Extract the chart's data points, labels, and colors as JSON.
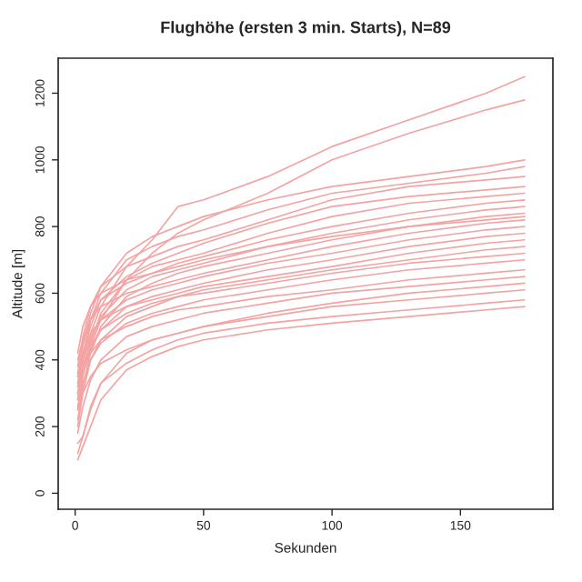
{
  "chart_data": {
    "type": "line",
    "title": "Flughöhe (ersten 3 min. Starts), N=89",
    "xlabel": "Sekunden",
    "ylabel": "Altitude [m]",
    "xlim": [
      -6.6,
      186
    ],
    "ylim": [
      -48,
      1305
    ],
    "xticks": [
      0,
      50,
      100,
      150
    ],
    "yticks": [
      0,
      200,
      400,
      600,
      800,
      1000,
      1200
    ],
    "grid": false,
    "legend": false,
    "marker": "none",
    "line_style": "solid",
    "series": [
      {
        "color": "#f4a3a3",
        "x": [
          1,
          3,
          6,
          10,
          20,
          30,
          40,
          50,
          75,
          100,
          130,
          160,
          175
        ],
        "values": [
          320,
          400,
          480,
          560,
          680,
          760,
          860,
          880,
          950,
          1040,
          1120,
          1200,
          1250
        ]
      },
      {
        "color": "#f4a3a3",
        "x": [
          1,
          3,
          6,
          10,
          20,
          30,
          40,
          50,
          75,
          100,
          130,
          160,
          175
        ],
        "values": [
          300,
          360,
          440,
          520,
          640,
          720,
          780,
          820,
          900,
          1000,
          1080,
          1150,
          1180
        ]
      },
      {
        "color": "#f4a3a3",
        "x": [
          1,
          3,
          6,
          10,
          20,
          30,
          40,
          50,
          75,
          100,
          130,
          160,
          175
        ],
        "values": [
          350,
          450,
          540,
          620,
          720,
          770,
          800,
          830,
          880,
          920,
          950,
          980,
          1000
        ]
      },
      {
        "color": "#f4a3a3",
        "x": [
          1,
          3,
          6,
          10,
          20,
          30,
          40,
          50,
          75,
          100,
          130,
          160,
          175
        ],
        "values": [
          280,
          400,
          520,
          600,
          700,
          740,
          770,
          790,
          850,
          900,
          930,
          960,
          980
        ]
      },
      {
        "color": "#f4a3a3",
        "x": [
          1,
          3,
          6,
          10,
          20,
          30,
          40,
          50,
          75,
          100,
          130,
          160,
          175
        ],
        "values": [
          380,
          470,
          560,
          620,
          680,
          710,
          740,
          760,
          820,
          880,
          920,
          940,
          950
        ]
      },
      {
        "color": "#f4a3a3",
        "x": [
          1,
          3,
          6,
          10,
          20,
          30,
          40,
          50,
          75,
          100,
          130,
          160,
          175
        ],
        "values": [
          330,
          420,
          500,
          580,
          650,
          690,
          720,
          750,
          810,
          860,
          890,
          910,
          920
        ]
      },
      {
        "color": "#f4a3a3",
        "x": [
          1,
          3,
          6,
          10,
          20,
          30,
          40,
          50,
          75,
          100,
          130,
          160,
          175
        ],
        "values": [
          250,
          350,
          450,
          540,
          640,
          680,
          700,
          720,
          780,
          830,
          870,
          890,
          900
        ]
      },
      {
        "color": "#f4a3a3",
        "x": [
          1,
          3,
          6,
          10,
          20,
          30,
          40,
          50,
          75,
          100,
          130,
          160,
          175
        ],
        "values": [
          360,
          440,
          520,
          580,
          630,
          660,
          690,
          710,
          760,
          800,
          840,
          870,
          880
        ]
      },
      {
        "color": "#f4a3a3",
        "x": [
          1,
          3,
          6,
          10,
          20,
          30,
          40,
          50,
          75,
          100,
          130,
          160,
          175
        ],
        "values": [
          300,
          380,
          460,
          530,
          610,
          650,
          670,
          690,
          740,
          780,
          820,
          850,
          860
        ]
      },
      {
        "color": "#f4a3a3",
        "x": [
          1,
          3,
          6,
          10,
          20,
          30,
          40,
          50,
          75,
          100,
          130,
          160,
          175
        ],
        "values": [
          220,
          320,
          420,
          500,
          590,
          630,
          660,
          680,
          720,
          760,
          800,
          830,
          840
        ]
      },
      {
        "color": "#f4a3a3",
        "x": [
          1,
          3,
          6,
          10,
          20,
          30,
          40,
          50,
          75,
          100,
          130,
          160,
          175
        ],
        "values": [
          400,
          460,
          520,
          560,
          600,
          620,
          640,
          660,
          700,
          740,
          780,
          810,
          820
        ]
      },
      {
        "color": "#f4a3a3",
        "x": [
          1,
          3,
          6,
          10,
          20,
          30,
          40,
          50,
          75,
          100,
          130,
          160,
          175
        ],
        "values": [
          330,
          400,
          470,
          520,
          580,
          610,
          630,
          650,
          690,
          720,
          760,
          790,
          800
        ]
      },
      {
        "color": "#f4a3a3",
        "x": [
          1,
          3,
          6,
          10,
          20,
          30,
          40,
          50,
          75,
          100,
          130,
          160,
          175
        ],
        "values": [
          280,
          360,
          430,
          490,
          560,
          590,
          610,
          630,
          670,
          700,
          740,
          770,
          780
        ]
      },
      {
        "color": "#f4a3a3",
        "x": [
          1,
          3,
          6,
          10,
          20,
          30,
          40,
          50,
          75,
          100,
          130,
          160,
          175
        ],
        "values": [
          350,
          420,
          480,
          520,
          560,
          580,
          600,
          620,
          650,
          680,
          720,
          750,
          760
        ]
      },
      {
        "color": "#f4a3a3",
        "x": [
          1,
          3,
          6,
          10,
          20,
          30,
          40,
          50,
          75,
          100,
          130,
          160,
          175
        ],
        "values": [
          200,
          300,
          400,
          460,
          530,
          560,
          590,
          610,
          640,
          670,
          700,
          730,
          740
        ]
      },
      {
        "color": "#f4a3a3",
        "x": [
          1,
          3,
          6,
          10,
          20,
          30,
          40,
          50,
          75,
          100,
          130,
          160,
          175
        ],
        "values": [
          320,
          380,
          440,
          490,
          540,
          570,
          590,
          600,
          630,
          660,
          690,
          710,
          720
        ]
      },
      {
        "color": "#f4a3a3",
        "x": [
          1,
          3,
          6,
          10,
          20,
          30,
          40,
          50,
          75,
          100,
          130,
          160,
          175
        ],
        "values": [
          260,
          330,
          400,
          450,
          510,
          540,
          560,
          580,
          610,
          640,
          670,
          690,
          700
        ]
      },
      {
        "color": "#f4a3a3",
        "x": [
          1,
          3,
          6,
          10,
          20,
          30,
          40,
          50,
          75,
          100,
          130,
          160,
          175
        ],
        "values": [
          300,
          360,
          420,
          460,
          500,
          530,
          550,
          560,
          590,
          610,
          640,
          660,
          670
        ]
      },
      {
        "color": "#f4a3a3",
        "x": [
          1,
          3,
          6,
          10,
          20,
          30,
          40,
          50,
          75,
          100,
          130,
          160,
          175
        ],
        "values": [
          180,
          260,
          340,
          400,
          470,
          500,
          520,
          540,
          570,
          600,
          620,
          640,
          650
        ]
      },
      {
        "color": "#f4a3a3",
        "x": [
          1,
          3,
          6,
          10,
          20,
          30,
          40,
          50,
          75,
          100,
          130,
          160,
          175
        ],
        "values": [
          150,
          170,
          250,
          330,
          420,
          460,
          480,
          500,
          540,
          570,
          600,
          620,
          630
        ]
      },
      {
        "color": "#f4a3a3",
        "x": [
          1,
          3,
          6,
          10,
          20,
          30,
          40,
          50,
          75,
          100,
          130,
          160,
          175
        ],
        "values": [
          250,
          300,
          350,
          390,
          430,
          460,
          480,
          500,
          530,
          560,
          580,
          600,
          610
        ]
      },
      {
        "color": "#f4a3a3",
        "x": [
          1,
          3,
          6,
          10,
          20,
          30,
          40,
          50,
          75,
          100,
          130,
          160,
          175
        ],
        "values": [
          120,
          170,
          260,
          330,
          390,
          430,
          460,
          480,
          510,
          530,
          550,
          570,
          580
        ]
      },
      {
        "color": "#f4a3a3",
        "x": [
          1,
          3,
          6,
          10,
          20,
          30,
          40,
          50,
          75,
          100,
          130,
          160,
          175
        ],
        "values": [
          100,
          140,
          200,
          280,
          370,
          410,
          440,
          460,
          490,
          510,
          530,
          550,
          560
        ]
      },
      {
        "color": "#f4a3a3",
        "x": [
          1,
          3,
          6,
          10,
          20,
          30,
          40,
          50,
          75,
          100,
          130,
          160,
          175
        ],
        "values": [
          420,
          500,
          560,
          600,
          640,
          660,
          680,
          700,
          740,
          770,
          800,
          820,
          830
        ]
      }
    ]
  }
}
